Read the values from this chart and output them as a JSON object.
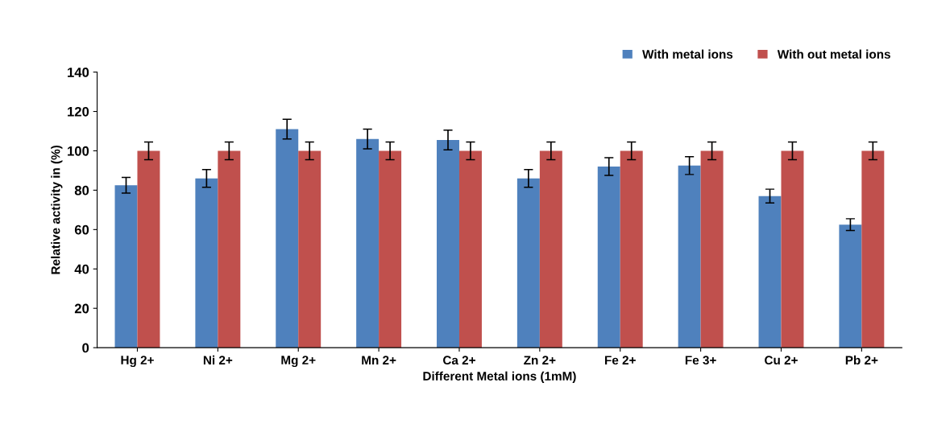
{
  "chart_data": {
    "type": "bar",
    "xlabel": "Different Metal ions (1mM)",
    "ylabel": "Relative activity in (%)",
    "categories": [
      "Hg 2+",
      "Ni 2+",
      "Mg 2+",
      "Mn 2+",
      "Ca 2+",
      "Zn 2+",
      "Fe 2+",
      "Fe 3+",
      "Cu 2+",
      "Pb 2+"
    ],
    "series": [
      {
        "name": "With metal ions",
        "color": "#4f81bd",
        "values": [
          82.5,
          86,
          111,
          106,
          105.5,
          86,
          92,
          92.5,
          77,
          62.5
        ],
        "errors": [
          4,
          4.5,
          5,
          5,
          5,
          4.5,
          4.5,
          4.5,
          3.5,
          3
        ]
      },
      {
        "name": "With out metal ions",
        "color": "#c0504d",
        "values": [
          100,
          100,
          100,
          100,
          100,
          100,
          100,
          100,
          100,
          100
        ],
        "errors": [
          4.5,
          4.5,
          4.5,
          4.5,
          4.5,
          4.5,
          4.5,
          4.5,
          4.5,
          4.5
        ]
      }
    ],
    "ylim": [
      0,
      140
    ],
    "yticks": [
      0,
      20,
      40,
      60,
      80,
      100,
      120,
      140
    ],
    "legend": "top right"
  }
}
